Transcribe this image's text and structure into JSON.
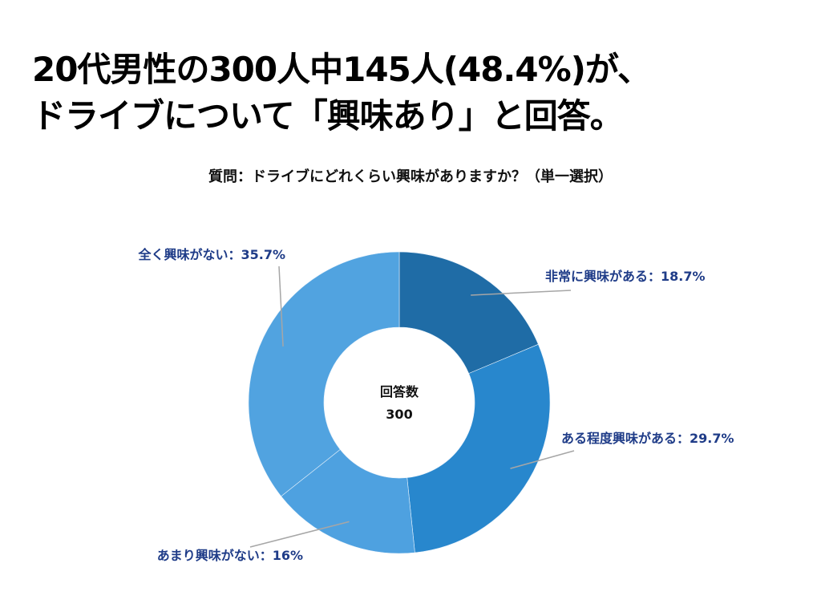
{
  "headline": {
    "line1": "20代男性の300人中145人(48.4%)が、",
    "line2": "ドライブについて「興味あり」と回答。"
  },
  "question": "質問：ドライブにどれくらい興味がありますか？（単一選択）",
  "chart_data": {
    "type": "pie",
    "donut": true,
    "center_label": "回答数",
    "center_value": "300",
    "label_color": "#1f3c88",
    "leader_color": "#a6a6a6",
    "slices": [
      {
        "label": "非常に興味がある：18.7%",
        "value": 18.7,
        "color": "#1f6ca6"
      },
      {
        "label": "ある程度興味がある：29.7%",
        "value": 29.7,
        "color": "#2887cd"
      },
      {
        "label": "あまり興味がない：16%",
        "value": 16.0,
        "color": "#4ea1e0"
      },
      {
        "label": "全く興味がない：35.7%",
        "value": 35.7,
        "color": "#51a3e0"
      }
    ]
  }
}
